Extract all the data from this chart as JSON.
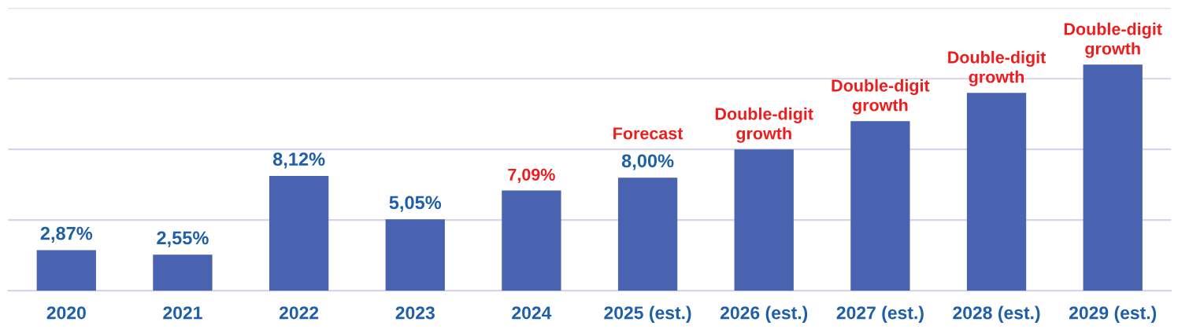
{
  "chart_data": {
    "type": "bar",
    "categories": [
      "2020",
      "2021",
      "2022",
      "2023",
      "2024",
      "2025 (est.)",
      "2026 (est.)",
      "2027 (est.)",
      "2028 (est.)",
      "2029 (est.)"
    ],
    "values": [
      2.87,
      2.55,
      8.12,
      5.05,
      7.09,
      8.0,
      10.0,
      12.0,
      14.0,
      16.0
    ],
    "color": "#4a63b0",
    "value_labels": [
      "2,87%",
      "2,55%",
      "8,12%",
      "5,05%",
      null,
      "8,00%",
      null,
      null,
      null,
      null
    ],
    "annotations": [
      {
        "text": "7,09%",
        "x": "2024",
        "y": 7.09
      },
      {
        "text": "Forecast",
        "x": "2025 (est.)",
        "y": 8.0
      },
      {
        "text": "Double-digit\ngrowth",
        "x": "2026 (est.)",
        "y": 10.0
      },
      {
        "text": "Double-digit\ngrowth",
        "x": "2027 (est.)",
        "y": 12.0
      },
      {
        "text": "Double-digit\ngrowth",
        "x": "2028 (est.)",
        "y": 14.0
      },
      {
        "text": "Double-digit\ngrowth",
        "x": "2029 (est.)",
        "y": 16.0
      }
    ],
    "ylim": [
      0,
      20
    ],
    "yticks": [
      {
        "value": 0,
        "label": null
      },
      {
        "value": 5,
        "label": null
      },
      {
        "value": 10,
        "label": null
      },
      {
        "value": 15,
        "label": null
      },
      {
        "value": 20,
        "label": null
      }
    ],
    "grid": "y",
    "tick_labels": "x"
  }
}
